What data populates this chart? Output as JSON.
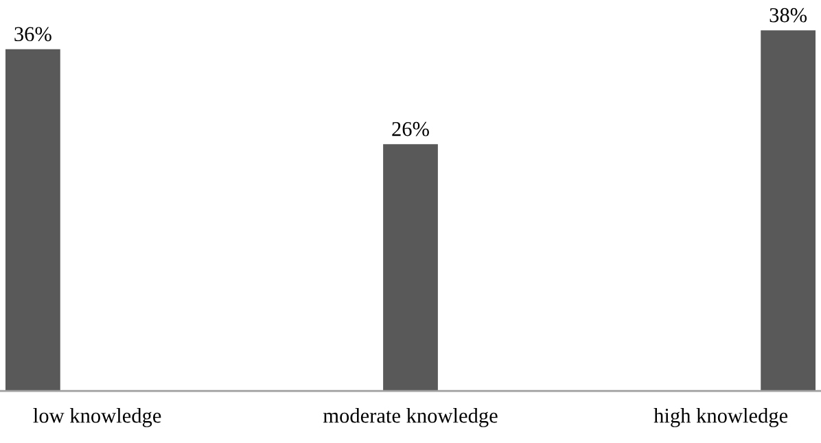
{
  "chart_data": {
    "type": "bar",
    "categories": [
      "low knowledge",
      "moderate knowledge",
      "high knowledge"
    ],
    "values": [
      36,
      26,
      38
    ],
    "value_labels": [
      "36%",
      "26%",
      "38%"
    ],
    "color": "#595959",
    "grid": false,
    "legend": false
  }
}
